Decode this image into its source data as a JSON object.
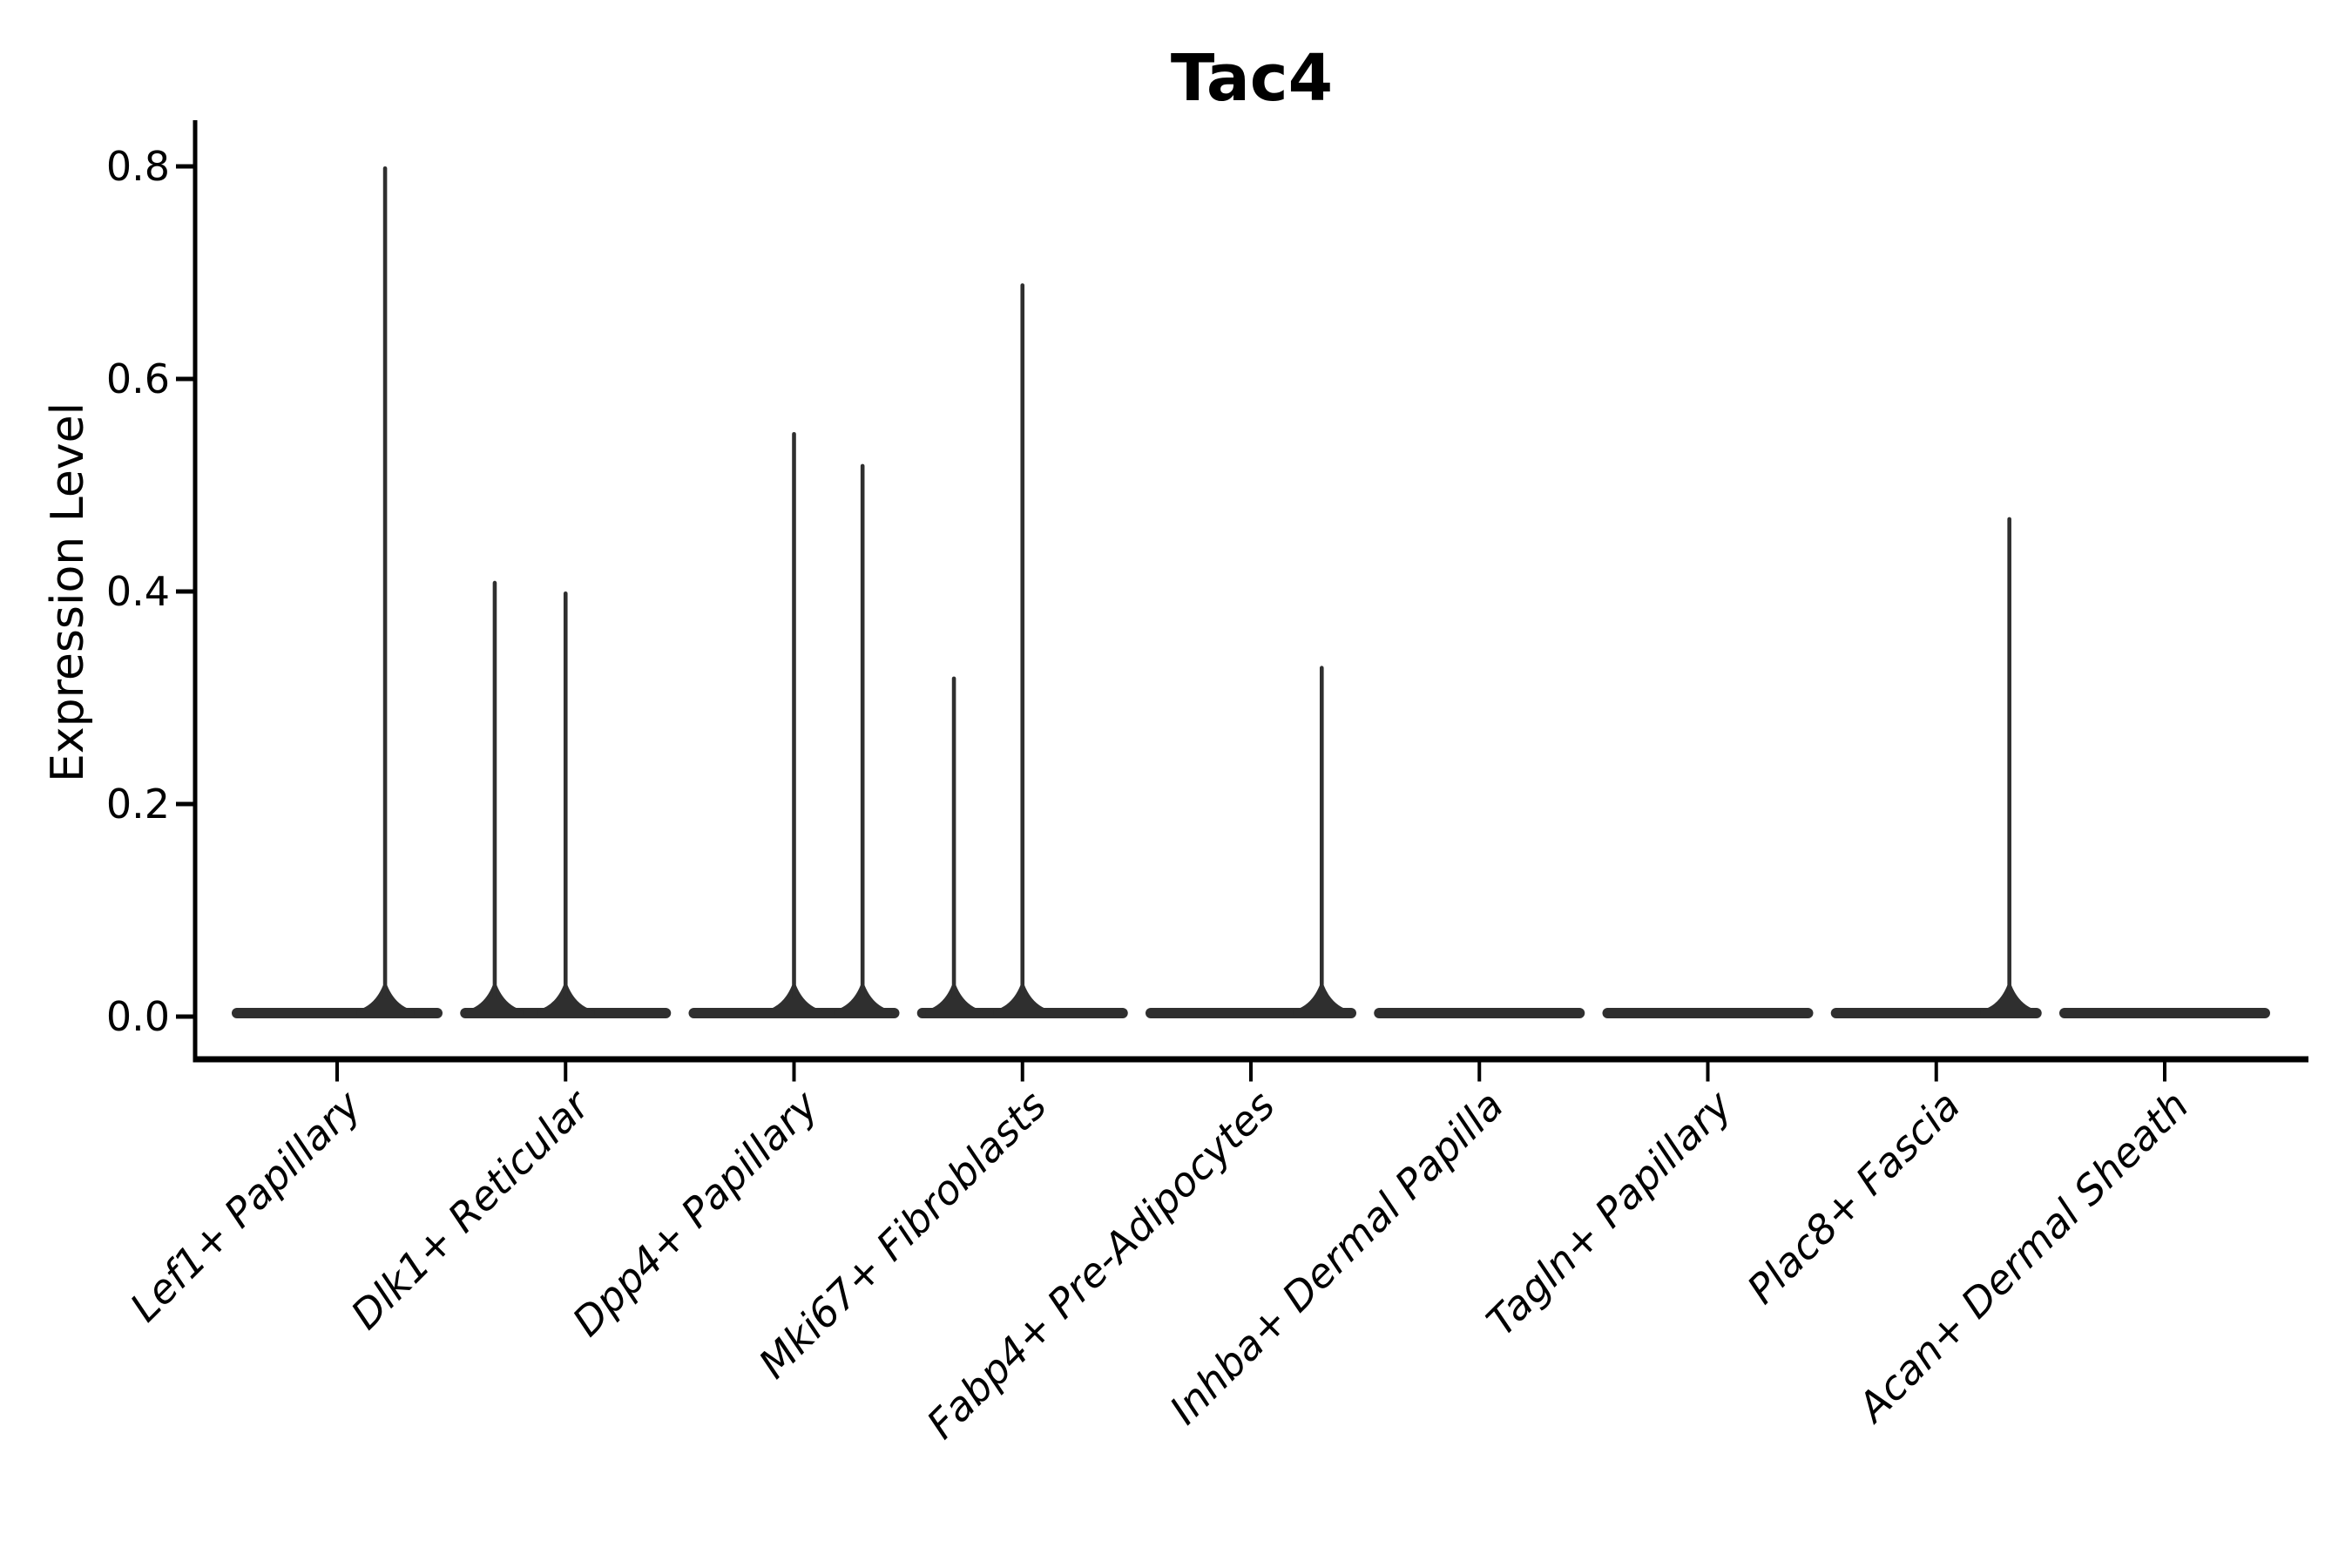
{
  "title": "Tac4",
  "chart_data": {
    "type": "violin",
    "title": "Tac4",
    "xlabel": "",
    "ylabel": "Expression Level",
    "ylim": [
      -0.04,
      0.84
    ],
    "yticks": [
      0.0,
      0.2,
      0.4,
      0.6,
      0.8
    ],
    "grid": false,
    "legend": "none",
    "violin_color": "#2f2f2f",
    "axis_color": "#000000",
    "categories": [
      "Lef1+ Papillary",
      "Dlk1+ Reticular",
      "Dpp4+ Papillary",
      "Mki67+ Fibroblasts",
      "Fabp4+ Pre-Adipocytes",
      "Inhba+ Dermal Papilla",
      "Tagln+ Papillary",
      "Plac8+ Fascia",
      "Acan+ Dermal Sheath"
    ],
    "series": [
      {
        "name": "Lef1+ Papillary",
        "zero_density": true,
        "spikes": [
          {
            "x_offset_frac": 0.21,
            "value": 0.8
          }
        ]
      },
      {
        "name": "Dlk1+ Reticular",
        "zero_density": true,
        "spikes": [
          {
            "x_offset_frac": -0.31,
            "value": 0.41
          },
          {
            "x_offset_frac": 0.0,
            "value": 0.4
          }
        ]
      },
      {
        "name": "Dpp4+ Papillary",
        "zero_density": true,
        "spikes": [
          {
            "x_offset_frac": 0.0,
            "value": 0.55
          },
          {
            "x_offset_frac": 0.3,
            "value": 0.52
          }
        ]
      },
      {
        "name": "Mki67+ Fibroblasts",
        "zero_density": true,
        "spikes": [
          {
            "x_offset_frac": -0.3,
            "value": 0.32
          },
          {
            "x_offset_frac": 0.0,
            "value": 0.69
          }
        ]
      },
      {
        "name": "Fabp4+ Pre-Adipocytes",
        "zero_density": true,
        "spikes": [
          {
            "x_offset_frac": 0.31,
            "value": 0.33
          }
        ]
      },
      {
        "name": "Inhba+ Dermal Papilla",
        "zero_density": true,
        "spikes": []
      },
      {
        "name": "Tagln+ Papillary",
        "zero_density": true,
        "spikes": []
      },
      {
        "name": "Plac8+ Fascia",
        "zero_density": true,
        "spikes": [
          {
            "x_offset_frac": 0.32,
            "value": 0.47
          }
        ]
      },
      {
        "name": "Acan+ Dermal Sheath",
        "zero_density": true,
        "spikes": []
      }
    ]
  }
}
